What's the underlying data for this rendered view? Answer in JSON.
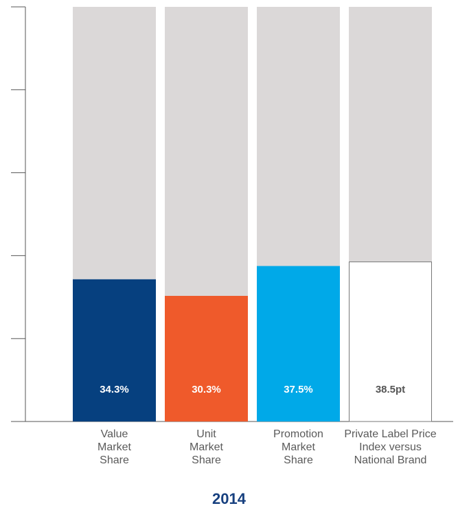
{
  "chart_data": {
    "type": "bar",
    "stacked_to_full": true,
    "categories": [
      "Value Market Share",
      "Unit Market Share",
      "Promotion Market Share",
      "Private Label Price Index versus National Brand"
    ],
    "category_labels": [
      [
        "Value",
        "Market",
        "Share"
      ],
      [
        "Unit",
        "Market",
        "Share"
      ],
      [
        "Promotion",
        "Market",
        "Share"
      ],
      [
        "Private Label Price",
        "Index versus",
        "National Brand"
      ]
    ],
    "values": [
      34.3,
      30.3,
      37.5,
      38.5
    ],
    "value_labels": [
      "34.3%",
      "30.3%",
      "37.5%",
      "38.5pt"
    ],
    "ylim": [
      0,
      100
    ],
    "y_tick_values": [
      0,
      20,
      40,
      60,
      80,
      100
    ],
    "colors": [
      "#06407f",
      "#ef5a2b",
      "#00a9e8",
      "#ffffff"
    ],
    "remainder_color": "#dbd8d8",
    "label_colors": [
      "#ffffff",
      "#ffffff",
      "#ffffff",
      "#555555"
    ],
    "xlabel": "2014",
    "grid": false
  }
}
